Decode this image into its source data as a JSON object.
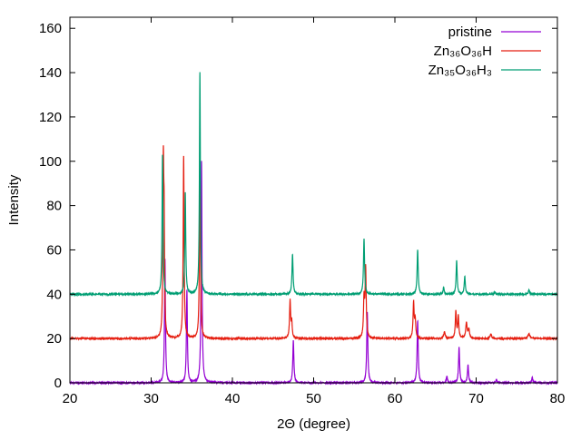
{
  "chart_data": {
    "type": "line",
    "title": "",
    "xlabel": "2Θ (degree)",
    "ylabel": "Intensity",
    "xlim": [
      20,
      80
    ],
    "ylim": [
      0,
      165
    ],
    "xticks": [
      20,
      30,
      40,
      50,
      60,
      70,
      80
    ],
    "yticks": [
      0,
      20,
      40,
      60,
      80,
      100,
      120,
      140,
      160
    ],
    "grid": false,
    "legend_position": "top-right",
    "series": [
      {
        "name": "pristine",
        "color": "#9400d3",
        "baseline": 0,
        "peaks": [
          {
            "x": 31.7,
            "y": 56,
            "w": 0.07
          },
          {
            "x": 34.4,
            "y": 42,
            "w": 0.07
          },
          {
            "x": 36.2,
            "y": 100,
            "w": 0.07
          },
          {
            "x": 47.5,
            "y": 19,
            "w": 0.08
          },
          {
            "x": 56.6,
            "y": 32,
            "w": 0.08
          },
          {
            "x": 62.8,
            "y": 28,
            "w": 0.08
          },
          {
            "x": 66.4,
            "y": 3,
            "w": 0.08
          },
          {
            "x": 67.9,
            "y": 16,
            "w": 0.08
          },
          {
            "x": 69.0,
            "y": 8,
            "w": 0.08
          },
          {
            "x": 72.5,
            "y": 1.5,
            "w": 0.08
          },
          {
            "x": 76.9,
            "y": 2.5,
            "w": 0.08
          }
        ]
      },
      {
        "name": "Zn₃₆O₃₆H",
        "color": "#e51e10",
        "baseline": 20,
        "peaks": [
          {
            "x": 31.5,
            "y": 96,
            "w": 0.07
          },
          {
            "x": 31.6,
            "y": 61,
            "w": 0.06
          },
          {
            "x": 34.0,
            "y": 102,
            "w": 0.07
          },
          {
            "x": 36.0,
            "y": 99,
            "w": 0.07
          },
          {
            "x": 47.1,
            "y": 37,
            "w": 0.08
          },
          {
            "x": 47.3,
            "y": 27,
            "w": 0.07
          },
          {
            "x": 56.2,
            "y": 37,
            "w": 0.08
          },
          {
            "x": 56.4,
            "y": 51,
            "w": 0.08
          },
          {
            "x": 62.3,
            "y": 36,
            "w": 0.08
          },
          {
            "x": 62.5,
            "y": 28,
            "w": 0.08
          },
          {
            "x": 66.1,
            "y": 23,
            "w": 0.1
          },
          {
            "x": 67.5,
            "y": 32,
            "w": 0.08
          },
          {
            "x": 67.8,
            "y": 30,
            "w": 0.08
          },
          {
            "x": 68.8,
            "y": 27,
            "w": 0.1
          },
          {
            "x": 69.1,
            "y": 24,
            "w": 0.1
          },
          {
            "x": 71.8,
            "y": 22,
            "w": 0.1
          },
          {
            "x": 76.5,
            "y": 22,
            "w": 0.15
          }
        ]
      },
      {
        "name": "Zn₃₅O₃₆H₃",
        "color": "#009e73",
        "baseline": 40,
        "peaks": [
          {
            "x": 31.4,
            "y": 103,
            "w": 0.07
          },
          {
            "x": 34.2,
            "y": 86,
            "w": 0.07
          },
          {
            "x": 36.0,
            "y": 140,
            "w": 0.07
          },
          {
            "x": 47.4,
            "y": 58,
            "w": 0.08
          },
          {
            "x": 56.2,
            "y": 65,
            "w": 0.08
          },
          {
            "x": 62.8,
            "y": 60,
            "w": 0.08
          },
          {
            "x": 66.0,
            "y": 43,
            "w": 0.08
          },
          {
            "x": 67.6,
            "y": 55,
            "w": 0.08
          },
          {
            "x": 68.6,
            "y": 48,
            "w": 0.08
          },
          {
            "x": 72.3,
            "y": 41,
            "w": 0.08
          },
          {
            "x": 76.5,
            "y": 42,
            "w": 0.08
          }
        ]
      }
    ]
  }
}
